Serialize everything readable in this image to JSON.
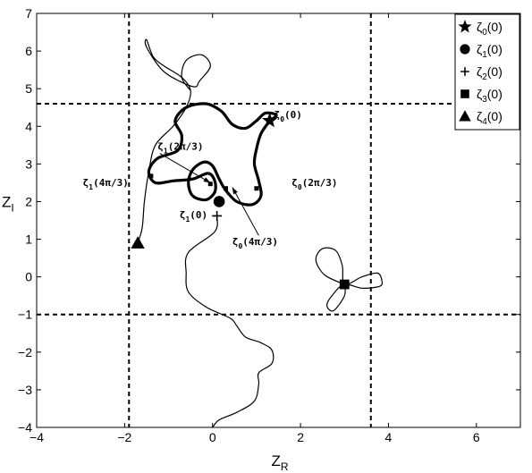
{
  "chart_data": {
    "type": "line",
    "xlabel": "Z",
    "xlabel_sub": "R",
    "ylabel": "Z",
    "ylabel_sub": "I",
    "xlim": [
      -4,
      7
    ],
    "ylim": [
      -4,
      7
    ],
    "xticks": [
      -4,
      -2,
      0,
      2,
      4,
      6
    ],
    "yticks": [
      -4,
      -3,
      -2,
      -1,
      0,
      1,
      2,
      3,
      4,
      5,
      6,
      7
    ],
    "grid": false,
    "legend_position": "top-right",
    "dashed_lines": {
      "vertical_x": [
        -1.9,
        3.6
      ],
      "horizontal_y": [
        4.6,
        -1.0
      ]
    },
    "legend": [
      {
        "symbol": "star",
        "sym": "ζ",
        "sub": "0",
        "arg": "(0)"
      },
      {
        "symbol": "circle",
        "sym": "ζ",
        "sub": "1",
        "arg": "(0)"
      },
      {
        "symbol": "plus",
        "sym": "ζ",
        "sub": "2",
        "arg": "(0)"
      },
      {
        "symbol": "square",
        "sym": "ζ",
        "sub": "3",
        "arg": "(0)"
      },
      {
        "symbol": "triangle",
        "sym": "ζ",
        "sub": "4",
        "arg": "(0)"
      }
    ],
    "markers": [
      {
        "symbol": "star",
        "x": 1.3,
        "y": 4.15
      },
      {
        "symbol": "circle",
        "x": 0.15,
        "y": 2.0
      },
      {
        "symbol": "plus",
        "x": 0.1,
        "y": 1.62
      },
      {
        "symbol": "square",
        "x": 3.0,
        "y": -0.2
      },
      {
        "symbol": "triangle",
        "x": -1.7,
        "y": 0.9
      }
    ],
    "small_marks": [
      {
        "x": -1.4,
        "y": 2.68
      },
      {
        "x": -0.05,
        "y": 2.47
      },
      {
        "x": 0.3,
        "y": 2.35
      },
      {
        "x": 1.0,
        "y": 2.35
      }
    ],
    "annotations": [
      {
        "sym": "ζ",
        "sub": "0",
        "arg": "(0)",
        "x": 1.4,
        "y": 4.22
      },
      {
        "sym": "ζ",
        "sub": "1",
        "arg": "(2π/3)",
        "x": -1.25,
        "y": 3.38
      },
      {
        "sym": "ζ",
        "sub": "1",
        "arg": "(4π/3)",
        "x": -2.95,
        "y": 2.42
      },
      {
        "sym": "ζ",
        "sub": "0",
        "arg": "(2π/3)",
        "x": 1.8,
        "y": 2.42
      },
      {
        "sym": "ζ",
        "sub": "1",
        "arg": "(0)",
        "x": -0.75,
        "y": 1.56
      },
      {
        "sym": "ζ",
        "sub": "0",
        "arg": "(4π/3)",
        "x": 0.45,
        "y": 0.85
      }
    ],
    "arrows": [
      {
        "from": [
          -1.2,
          3.28
        ],
        "to": [
          -0.05,
          2.5
        ]
      },
      {
        "from": [
          1.05,
          1.1
        ],
        "to": [
          0.45,
          2.38
        ]
      }
    ],
    "series": [
      {
        "thick": true,
        "points": [
          [
            1.3,
            4.15
          ],
          [
            1.1,
            3.8
          ],
          [
            1.0,
            3.4
          ],
          [
            0.95,
            3.0
          ],
          [
            1.05,
            2.55
          ],
          [
            1.1,
            2.15
          ],
          [
            0.9,
            1.92
          ],
          [
            0.55,
            2.0
          ],
          [
            0.3,
            2.3
          ],
          [
            0.15,
            2.6
          ],
          [
            0.0,
            2.95
          ],
          [
            -0.2,
            3.05
          ],
          [
            -0.45,
            2.85
          ],
          [
            -0.55,
            2.5
          ],
          [
            -0.45,
            2.15
          ],
          [
            -0.15,
            2.05
          ],
          [
            0.05,
            2.25
          ],
          [
            0.05,
            2.55
          ],
          [
            -0.1,
            2.75
          ],
          [
            -0.45,
            2.6
          ],
          [
            -0.9,
            2.55
          ],
          [
            -1.3,
            2.5
          ],
          [
            -1.45,
            2.8
          ],
          [
            -1.25,
            3.15
          ],
          [
            -0.8,
            3.35
          ],
          [
            -0.7,
            3.75
          ],
          [
            -0.85,
            4.15
          ],
          [
            -0.6,
            4.5
          ],
          [
            -0.15,
            4.6
          ],
          [
            0.2,
            4.4
          ],
          [
            0.45,
            4.05
          ],
          [
            0.75,
            3.95
          ],
          [
            1.0,
            4.15
          ],
          [
            1.2,
            4.35
          ],
          [
            1.45,
            4.3
          ],
          [
            1.3,
            4.15
          ]
        ]
      },
      {
        "thick": false,
        "points": [
          [
            -1.7,
            0.9
          ],
          [
            -1.6,
            1.3
          ],
          [
            -1.55,
            2.0
          ],
          [
            -1.45,
            2.8
          ],
          [
            -1.3,
            3.5
          ],
          [
            -0.9,
            4.0
          ],
          [
            -0.6,
            4.5
          ],
          [
            -0.5,
            4.95
          ],
          [
            -0.7,
            5.3
          ],
          [
            -1.1,
            5.6
          ],
          [
            -1.35,
            5.85
          ],
          [
            -1.5,
            6.3
          ],
          [
            -1.5,
            6.1
          ],
          [
            -1.15,
            5.5
          ],
          [
            -0.75,
            5.2
          ],
          [
            -0.4,
            5.05
          ],
          [
            -0.3,
            5.2
          ],
          [
            -0.05,
            5.6
          ],
          [
            -0.25,
            5.9
          ],
          [
            -0.6,
            5.75
          ],
          [
            -0.7,
            5.3
          ],
          [
            -0.5,
            4.95
          ]
        ]
      },
      {
        "thick": false,
        "points": [
          [
            0.1,
            1.62
          ],
          [
            0.05,
            1.2
          ],
          [
            -0.55,
            0.65
          ],
          [
            -0.6,
            0.1
          ],
          [
            -0.55,
            -0.4
          ],
          [
            -0.15,
            -0.8
          ],
          [
            0.4,
            -1.1
          ],
          [
            0.55,
            -1.3
          ],
          [
            0.75,
            -1.6
          ],
          [
            1.1,
            -1.75
          ],
          [
            1.35,
            -1.95
          ],
          [
            1.35,
            -2.3
          ],
          [
            1.05,
            -2.55
          ],
          [
            1.05,
            -2.85
          ],
          [
            0.95,
            -3.3
          ],
          [
            0.55,
            -3.6
          ],
          [
            0.15,
            -3.8
          ],
          [
            0.0,
            -4.0
          ]
        ]
      },
      {
        "thick": false,
        "points": [
          [
            3.0,
            -0.2
          ],
          [
            2.55,
            0.05
          ],
          [
            2.35,
            0.45
          ],
          [
            2.5,
            0.75
          ],
          [
            2.8,
            0.7
          ],
          [
            2.95,
            0.3
          ],
          [
            3.0,
            -0.2
          ],
          [
            3.4,
            0.0
          ],
          [
            3.75,
            0.1
          ],
          [
            3.85,
            -0.1
          ],
          [
            3.8,
            -0.25
          ],
          [
            3.4,
            -0.3
          ],
          [
            3.0,
            -0.2
          ],
          [
            2.75,
            -0.45
          ],
          [
            2.6,
            -0.75
          ],
          [
            2.75,
            -0.9
          ],
          [
            3.0,
            -0.5
          ],
          [
            3.0,
            -0.2
          ]
        ]
      }
    ]
  }
}
